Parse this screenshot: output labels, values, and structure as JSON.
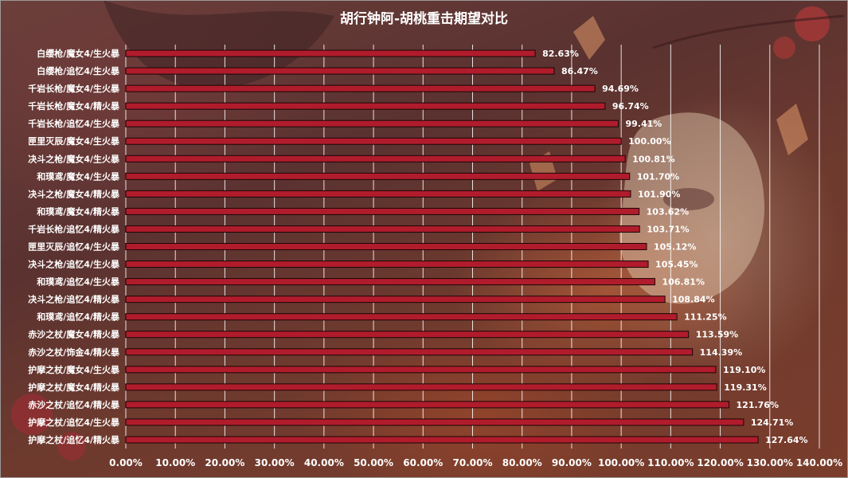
{
  "chart_data": {
    "type": "bar",
    "orientation": "horizontal",
    "title": "胡行钟阿-胡桃重击期望对比",
    "xlabel": "",
    "ylabel": "",
    "xlim": [
      0,
      1.4
    ],
    "x_ticks": [
      0,
      0.1,
      0.2,
      0.3,
      0.4,
      0.5,
      0.6,
      0.7,
      0.8,
      0.9,
      1.0,
      1.1,
      1.2,
      1.3,
      1.4
    ],
    "x_tick_labels": [
      "0.00%",
      "10.00%",
      "20.00%",
      "30.00%",
      "40.00%",
      "50.00%",
      "60.00%",
      "70.00%",
      "80.00%",
      "90.00%",
      "100.00%",
      "110.00%",
      "120.00%",
      "130.00%",
      "140.00%"
    ],
    "grid": "vertical",
    "legend": "none",
    "categories": [
      "白缨枪/魔女4/生火暴",
      "白缨枪/追忆4/生火暴",
      "千岩长枪/魔女4/生火暴",
      "千岩长枪/魔女4/精火暴",
      "千岩长枪/追忆4/生火暴",
      "匣里灭辰/魔女4/生火暴",
      "决斗之枪/魔女4/生火暴",
      "和璞鸢/魔女4/生火暴",
      "决斗之枪/魔女4/精火暴",
      "和璞鸢/魔女4/精火暴",
      "千岩长枪/追忆4/精火暴",
      "匣里灭辰/追忆4/生火暴",
      "决斗之枪/追忆4/生火暴",
      "和璞鸢/追忆4/生火暴",
      "决斗之枪/追忆4/精火暴",
      "和璞鸢/追忆4/精火暴",
      "赤沙之杖/魔女4/精火暴",
      "赤沙之杖/饰金4/精火暴",
      "护摩之杖/魔女4/生火暴",
      "护摩之杖/魔女4/精火暴",
      "赤沙之杖/追忆4/精火暴",
      "护摩之杖/追忆4/生火暴",
      "护摩之杖/追忆4/精火暴"
    ],
    "values": [
      0.8263,
      0.8647,
      0.9469,
      0.9674,
      0.9941,
      1.0,
      1.0081,
      1.017,
      1.019,
      1.0362,
      1.0371,
      1.0512,
      1.0545,
      1.0681,
      1.0884,
      1.1125,
      1.1359,
      1.1439,
      1.191,
      1.1931,
      1.2176,
      1.2471,
      1.2764
    ],
    "value_labels": [
      "82.63%",
      "86.47%",
      "94.69%",
      "96.74%",
      "99.41%",
      "100.00%",
      "100.81%",
      "101.70%",
      "101.90%",
      "103.62%",
      "103.71%",
      "105.12%",
      "105.45%",
      "106.81%",
      "108.84%",
      "111.25%",
      "113.59%",
      "114.39%",
      "119.10%",
      "119.31%",
      "121.76%",
      "124.71%",
      "127.64%"
    ],
    "colors": {
      "bar_fill": "#b01c2c",
      "bar_stroke": "#1a0606",
      "grid": "#ffffff",
      "text": "#ffffff"
    }
  }
}
